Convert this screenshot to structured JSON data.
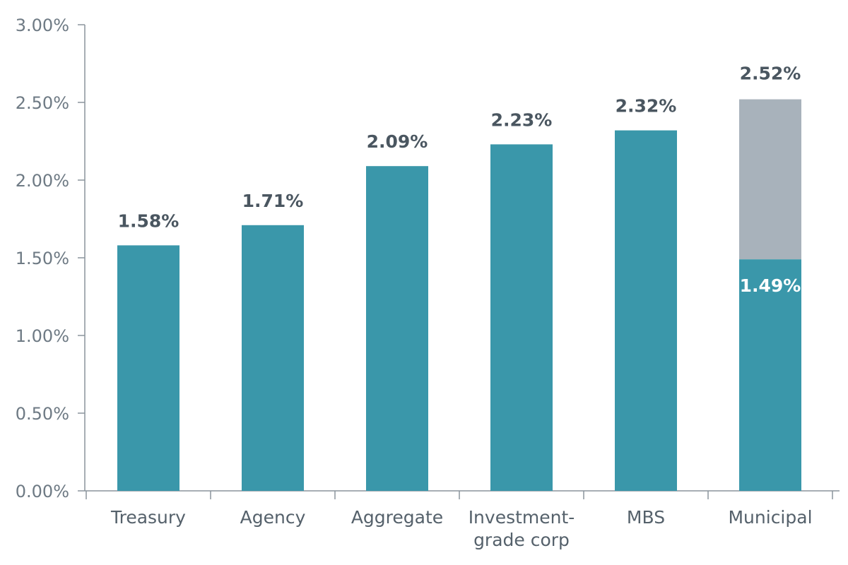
{
  "chart_data": {
    "type": "bar",
    "title": "",
    "xlabel": "",
    "ylabel": "",
    "ylim": [
      0,
      3.0
    ],
    "y_ticks": [
      0,
      0.5,
      1.0,
      1.5,
      2.0,
      2.5,
      3.0
    ],
    "y_tick_labels": [
      "0.00%",
      "0.50%",
      "1.00%",
      "1.50%",
      "2.00%",
      "2.50%",
      "3.00%"
    ],
    "grid": false,
    "categories": [
      [
        "Treasury"
      ],
      [
        "Agency"
      ],
      [
        "Aggregate"
      ],
      [
        "Investment-",
        "grade corp"
      ],
      [
        "MBS"
      ],
      [
        "Municipal"
      ]
    ],
    "values": [
      1.58,
      1.71,
      2.09,
      2.23,
      2.32,
      1.49
    ],
    "value_labels": [
      "1.58%",
      "1.71%",
      "2.09%",
      "2.23%",
      "2.32%",
      "1.49%"
    ],
    "stacked_extra": {
      "category_index": 5,
      "base": 1.49,
      "total": 2.52,
      "total_label": "2.52%",
      "base_label": "1.49%"
    },
    "colors": {
      "bar": "#3a97aa",
      "extra": "#a8b2bb",
      "axis": "#8a949c"
    }
  }
}
